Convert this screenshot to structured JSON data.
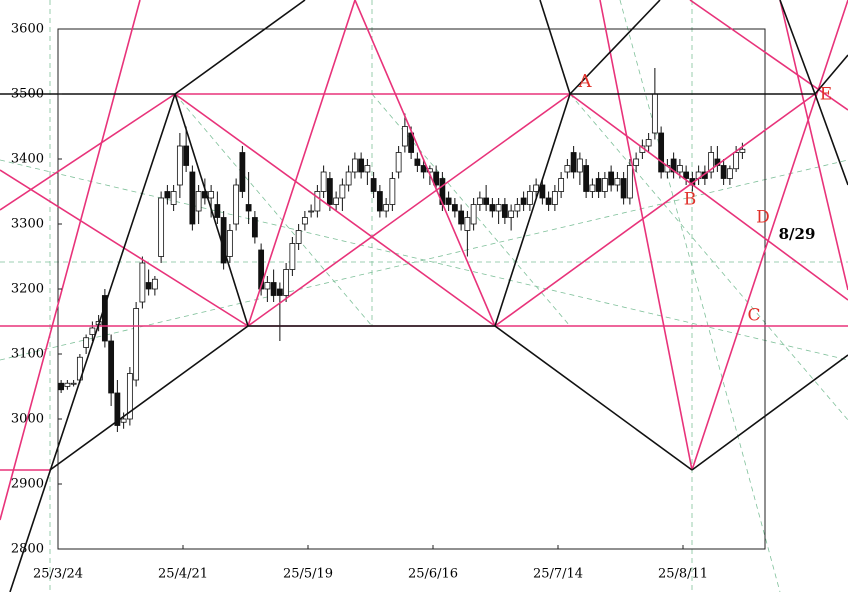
{
  "chart_data": {
    "type": "candlestick",
    "categories": [
      "25/3/24",
      null,
      null,
      null,
      null,
      null,
      null,
      null,
      null,
      null,
      null,
      null,
      null,
      null,
      null,
      null,
      null,
      null,
      null,
      null,
      "25/4/21",
      null,
      null,
      null,
      null,
      null,
      null,
      null,
      null,
      null,
      null,
      null,
      null,
      null,
      null,
      null,
      null,
      null,
      null,
      null,
      "25/5/19",
      null,
      null,
      null,
      null,
      null,
      null,
      null,
      null,
      null,
      null,
      null,
      null,
      null,
      null,
      null,
      null,
      null,
      null,
      null,
      "25/6/16",
      null,
      null,
      null,
      null,
      null,
      null,
      null,
      null,
      null,
      null,
      null,
      null,
      null,
      null,
      null,
      null,
      null,
      null,
      null,
      "25/7/14",
      null,
      null,
      null,
      null,
      null,
      null,
      null,
      null,
      null,
      null,
      null,
      null,
      null,
      null,
      null,
      null,
      null,
      null,
      null,
      "25/8/11",
      null,
      null,
      null,
      null,
      null,
      null,
      null,
      null,
      null
    ],
    "open": [
      3055,
      3050,
      3055,
      3060,
      3110,
      3130,
      3145,
      3190,
      3120,
      3040,
      2995,
      3000,
      3060,
      3180,
      3210,
      3200,
      3250,
      3350,
      3330,
      3360,
      3420,
      3380,
      3320,
      3350,
      3340,
      3330,
      3310,
      3250,
      3300,
      3410,
      3330,
      3310,
      3260,
      3200,
      3210,
      3200,
      3190,
      3230,
      3270,
      3300,
      3320,
      3320,
      3350,
      3370,
      3330,
      3340,
      3360,
      3380,
      3400,
      3380,
      3370,
      3350,
      3320,
      3330,
      3380,
      3420,
      3440,
      3400,
      3390,
      3380,
      3380,
      3370,
      3340,
      3330,
      3320,
      3290,
      3300,
      3330,
      3340,
      3330,
      3320,
      3330,
      3310,
      3320,
      3340,
      3330,
      3350,
      3360,
      3340,
      3330,
      3350,
      3380,
      3410,
      3380,
      3390,
      3350,
      3370,
      3350,
      3380,
      3360,
      3370,
      3340,
      3390,
      3410,
      3420,
      3440,
      3440,
      3380,
      3400,
      3380,
      3380,
      3370,
      3370,
      3380,
      3380,
      3400,
      3390,
      3370,
      3385,
      3410
    ],
    "high": [
      3060,
      3060,
      3060,
      3100,
      3130,
      3150,
      3160,
      3200,
      3130,
      3060,
      3010,
      3080,
      3180,
      3250,
      3230,
      3220,
      3350,
      3360,
      3360,
      3440,
      3450,
      3390,
      3360,
      3370,
      3360,
      3350,
      3320,
      3300,
      3370,
      3420,
      3380,
      3320,
      3270,
      3220,
      3230,
      3210,
      3240,
      3280,
      3300,
      3320,
      3330,
      3360,
      3390,
      3380,
      3350,
      3370,
      3390,
      3410,
      3410,
      3400,
      3380,
      3360,
      3340,
      3380,
      3420,
      3470,
      3450,
      3410,
      3400,
      3390,
      3390,
      3380,
      3350,
      3340,
      3330,
      3320,
      3340,
      3350,
      3360,
      3340,
      3340,
      3340,
      3330,
      3340,
      3350,
      3360,
      3370,
      3370,
      3350,
      3360,
      3380,
      3400,
      3420,
      3410,
      3400,
      3370,
      3380,
      3380,
      3390,
      3380,
      3380,
      3400,
      3410,
      3430,
      3440,
      3540,
      3450,
      3400,
      3410,
      3400,
      3390,
      3380,
      3390,
      3390,
      3420,
      3420,
      3400,
      3390,
      3420,
      3425
    ],
    "low": [
      3040,
      3045,
      3050,
      3055,
      3100,
      3120,
      3135,
      3110,
      3020,
      2980,
      2985,
      2990,
      3050,
      3170,
      3190,
      3190,
      3240,
      3330,
      3320,
      3340,
      3380,
      3290,
      3300,
      3330,
      3310,
      3300,
      3230,
      3240,
      3290,
      3340,
      3300,
      3270,
      3190,
      3180,
      3180,
      3120,
      3180,
      3220,
      3260,
      3290,
      3310,
      3310,
      3340,
      3320,
      3320,
      3320,
      3350,
      3370,
      3370,
      3360,
      3340,
      3310,
      3310,
      3320,
      3370,
      3410,
      3400,
      3380,
      3370,
      3360,
      3350,
      3320,
      3320,
      3310,
      3290,
      3250,
      3290,
      3320,
      3320,
      3310,
      3300,
      3300,
      3290,
      3310,
      3320,
      3320,
      3340,
      3330,
      3320,
      3320,
      3340,
      3370,
      3370,
      3360,
      3340,
      3340,
      3340,
      3340,
      3350,
      3350,
      3330,
      3330,
      3380,
      3400,
      3410,
      3430,
      3370,
      3370,
      3370,
      3370,
      3360,
      3350,
      3360,
      3360,
      3370,
      3380,
      3360,
      3360,
      3380,
      3400
    ],
    "close": [
      3045,
      3055,
      3055,
      3095,
      3125,
      3140,
      3150,
      3120,
      3040,
      2990,
      3000,
      3070,
      3170,
      3240,
      3200,
      3215,
      3340,
      3340,
      3350,
      3420,
      3390,
      3300,
      3350,
      3340,
      3350,
      3310,
      3240,
      3290,
      3360,
      3350,
      3320,
      3280,
      3200,
      3210,
      3190,
      3190,
      3230,
      3270,
      3290,
      3310,
      3320,
      3350,
      3380,
      3330,
      3340,
      3360,
      3380,
      3400,
      3380,
      3390,
      3350,
      3320,
      3330,
      3370,
      3410,
      3450,
      3410,
      3390,
      3380,
      3385,
      3360,
      3330,
      3330,
      3320,
      3300,
      3310,
      3330,
      3340,
      3330,
      3320,
      3330,
      3310,
      3320,
      3330,
      3330,
      3350,
      3360,
      3340,
      3330,
      3350,
      3370,
      3390,
      3380,
      3400,
      3350,
      3360,
      3350,
      3370,
      3360,
      3370,
      3340,
      3390,
      3400,
      3420,
      3430,
      3500,
      3380,
      3390,
      3380,
      3390,
      3370,
      3360,
      3380,
      3370,
      3410,
      3390,
      3370,
      3385,
      3410,
      3415
    ],
    "ylim": [
      2800,
      3600
    ],
    "yticks": [
      2800,
      2900,
      3000,
      3100,
      3200,
      3300,
      3400,
      3500,
      3600
    ],
    "annotations": [
      {
        "text": "A",
        "color": "#e0302a"
      },
      {
        "text": "B",
        "color": "#e0302a"
      },
      {
        "text": "C",
        "color": "#e0302a"
      },
      {
        "text": "D",
        "color": "#e0302a"
      },
      {
        "text": "E",
        "color": "#e0302a"
      },
      {
        "text": "8/29",
        "color": "#000000"
      }
    ]
  }
}
